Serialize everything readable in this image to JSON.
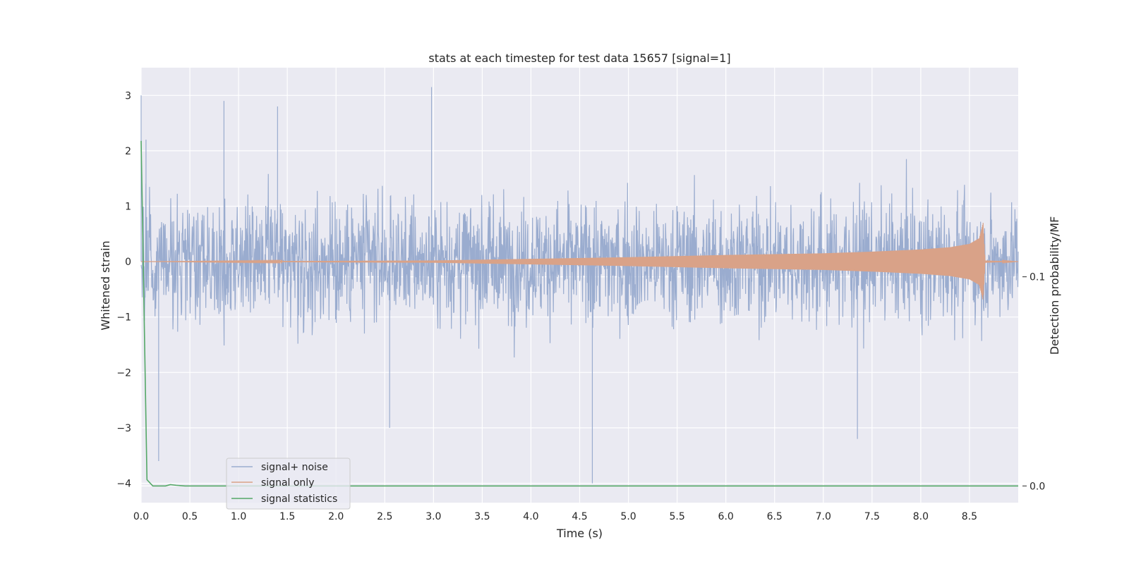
{
  "chart_data": {
    "type": "line",
    "title": "stats at each timestep for test data 15657 [signal=1]",
    "xlabel": "Time (s)",
    "ylabel": "Whitened strain",
    "y2label": "Detection probability/MF",
    "xlim": [
      0,
      9.0
    ],
    "ylim": [
      -4.35,
      3.5
    ],
    "y2lim": [
      -0.008,
      0.2
    ],
    "x_ticks": [
      "0.0",
      "0.5",
      "1.0",
      "1.5",
      "2.0",
      "2.5",
      "3.0",
      "3.5",
      "4.0",
      "4.5",
      "5.0",
      "5.5",
      "6.0",
      "6.5",
      "7.0",
      "7.5",
      "8.0",
      "8.5"
    ],
    "y_ticks": [
      "3",
      "2",
      "1",
      "0",
      "−1",
      "−2",
      "−3",
      "−4"
    ],
    "y2_ticks": [
      "0.1",
      "0.0"
    ],
    "grid": true,
    "legend_position": "lower-left",
    "series": [
      {
        "name": "signal+ noise",
        "color": "#9aaccf",
        "axis": "left",
        "description_points": {
          "x": [
            0.0,
            0.05,
            0.18,
            0.85,
            1.4,
            2.55,
            2.98,
            4.63,
            7.35
          ],
          "y": [
            3.0,
            2.2,
            -3.6,
            2.9,
            2.8,
            -3.0,
            3.15,
            -4.0,
            -3.2
          ]
        },
        "duration": 9.0,
        "typical_envelope": [
          -1.9,
          1.9
        ]
      },
      {
        "name": "signal only",
        "color": "#d9a288",
        "axis": "left",
        "x": [
          0.0,
          3.0,
          4.0,
          5.0,
          6.0,
          7.0,
          7.5,
          8.0,
          8.3,
          8.5,
          8.6,
          8.64,
          8.66,
          9.0
        ],
        "amplitude": [
          0.0,
          0.02,
          0.05,
          0.08,
          0.12,
          0.15,
          0.18,
          0.22,
          0.26,
          0.32,
          0.42,
          0.7,
          0.02,
          0.0
        ]
      },
      {
        "name": "signal statistics",
        "color": "#55a868",
        "axis": "right",
        "x": [
          0.0,
          0.06,
          0.12,
          0.25,
          0.3,
          0.36,
          0.45,
          9.0
        ],
        "y": [
          0.165,
          0.003,
          0.0,
          0.0,
          0.0006,
          0.0003,
          0.0,
          0.0
        ]
      }
    ]
  }
}
